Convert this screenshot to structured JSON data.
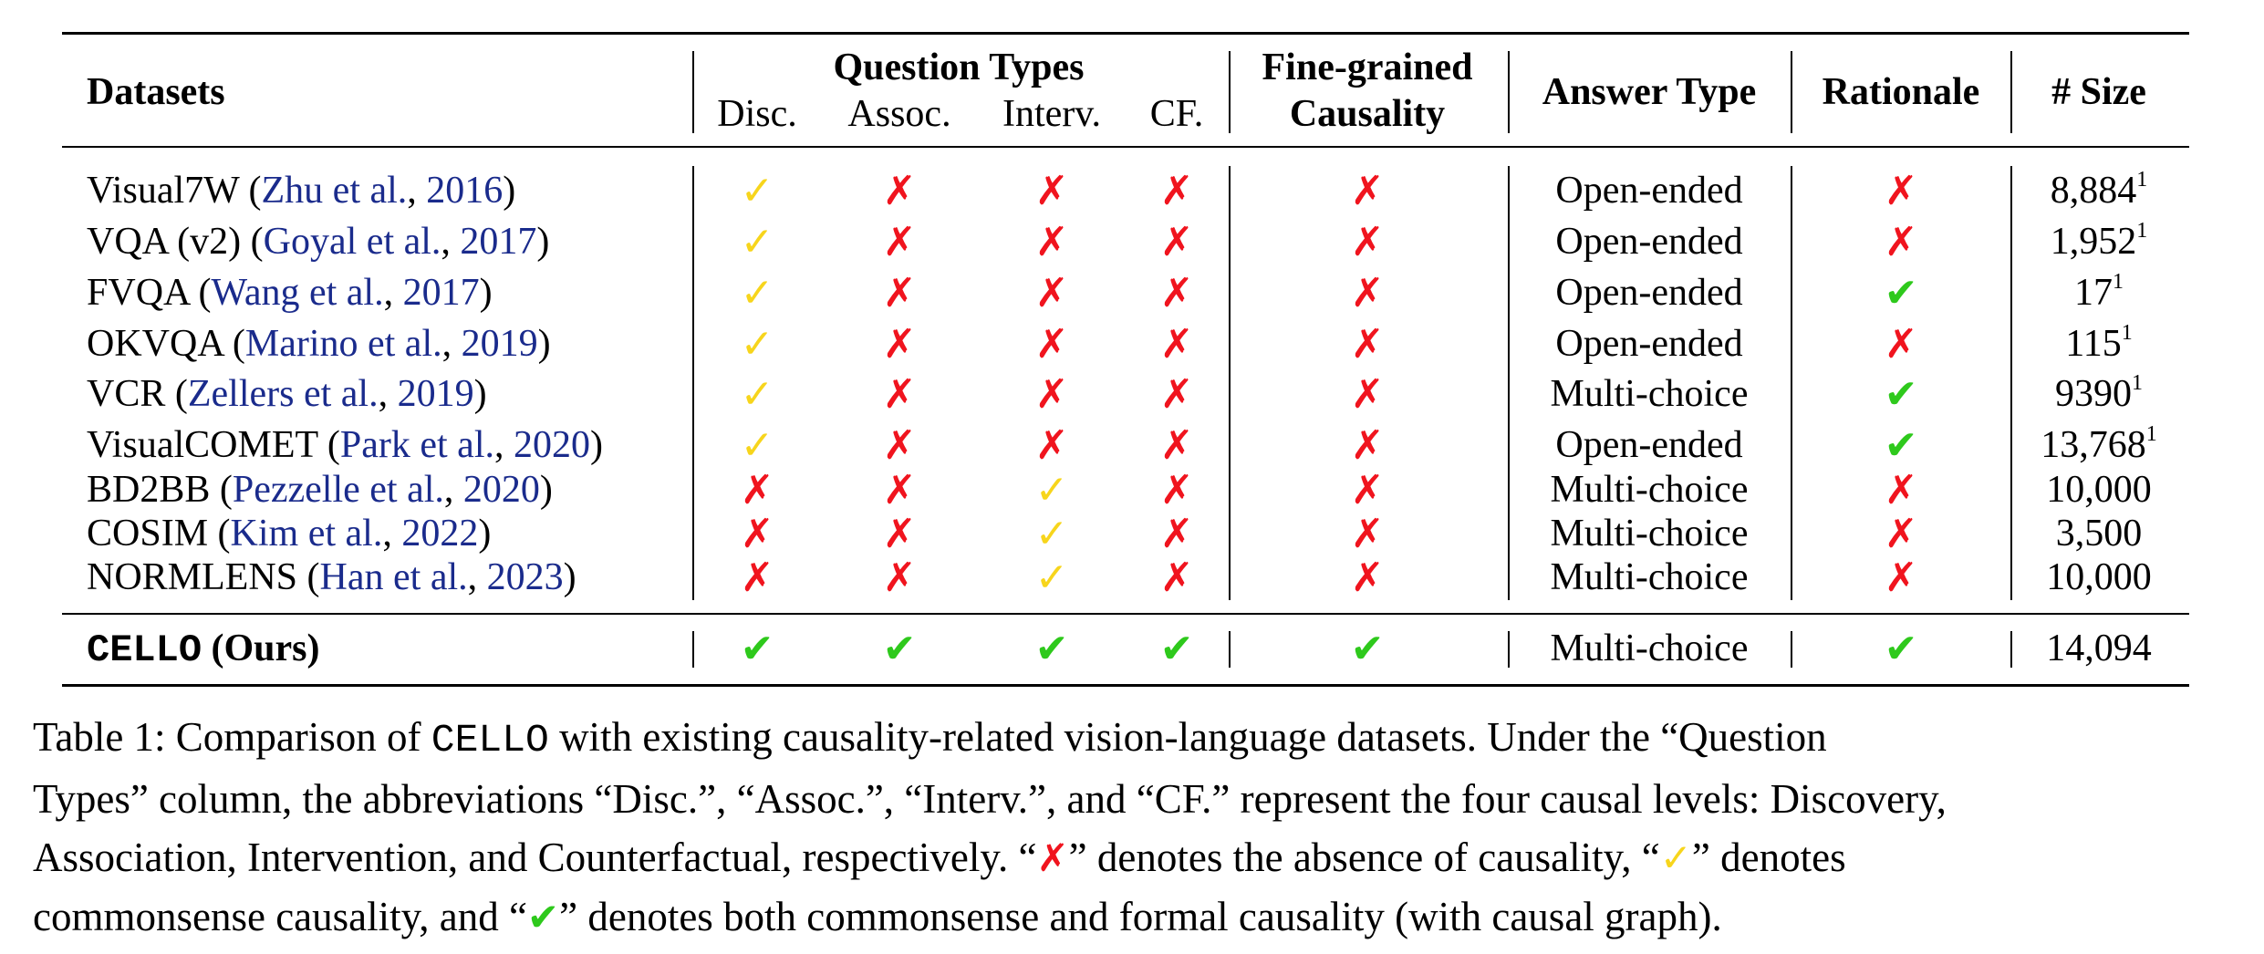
{
  "table": {
    "headers": {
      "datasets": "Datasets",
      "question_types": "Question Types",
      "qt_sub": [
        "Disc.",
        "Assoc.",
        "Interv.",
        "CF."
      ],
      "fine_grained_l1": "Fine-grained",
      "fine_grained_l2": "Causality",
      "answer_type": "Answer Type",
      "rationale": "Rationale",
      "size": "# Size"
    },
    "rows": [
      {
        "name": "Visual7W",
        "cite_author": "Zhu et al.",
        "cite_year": "2016",
        "marks": [
          "yes",
          "cross",
          "cross",
          "cross",
          "cross"
        ],
        "answer_type": "Open-ended",
        "rationale": "cross",
        "size": "8,884",
        "size_sup": "1"
      },
      {
        "name": "VQA (v2)",
        "cite_author": "Goyal et al.",
        "cite_year": "2017",
        "marks": [
          "yes",
          "cross",
          "cross",
          "cross",
          "cross"
        ],
        "answer_type": "Open-ended",
        "rationale": "cross",
        "size": "1,952",
        "size_sup": "1"
      },
      {
        "name": "FVQA",
        "cite_author": "Wang et al.",
        "cite_year": "2017",
        "marks": [
          "yes",
          "cross",
          "cross",
          "cross",
          "cross"
        ],
        "answer_type": "Open-ended",
        "rationale": "both",
        "size": "17",
        "size_sup": "1"
      },
      {
        "name": "OKVQA",
        "cite_author": "Marino et al.",
        "cite_year": "2019",
        "marks": [
          "yes",
          "cross",
          "cross",
          "cross",
          "cross"
        ],
        "answer_type": "Open-ended",
        "rationale": "cross",
        "size": "115",
        "size_sup": "1"
      },
      {
        "name": "VCR",
        "cite_author": "Zellers et al.",
        "cite_year": "2019",
        "marks": [
          "yes",
          "cross",
          "cross",
          "cross",
          "cross"
        ],
        "answer_type": "Multi-choice",
        "rationale": "both",
        "size": "9390",
        "size_sup": "1"
      },
      {
        "name": "VisualCOMET",
        "cite_author": "Park et al.",
        "cite_year": "2020",
        "marks": [
          "yes",
          "cross",
          "cross",
          "cross",
          "cross"
        ],
        "answer_type": "Open-ended",
        "rationale": "both",
        "size": "13,768",
        "size_sup": "1"
      },
      {
        "name": "BD2BB",
        "cite_author": "Pezzelle et al.",
        "cite_year": "2020",
        "marks": [
          "cross",
          "cross",
          "yes",
          "cross",
          "cross"
        ],
        "answer_type": "Multi-choice",
        "rationale": "cross",
        "size": "10,000",
        "size_sup": ""
      },
      {
        "name": "COSIM",
        "cite_author": "Kim et al.",
        "cite_year": "2022",
        "marks": [
          "cross",
          "cross",
          "yes",
          "cross",
          "cross"
        ],
        "answer_type": "Multi-choice",
        "rationale": "cross",
        "size": "3,500",
        "size_sup": ""
      },
      {
        "name": "NORMLENS",
        "cite_author": "Han et al.",
        "cite_year": "2023",
        "marks": [
          "cross",
          "cross",
          "yes",
          "cross",
          "cross"
        ],
        "answer_type": "Multi-choice",
        "rationale": "cross",
        "size": "10,000",
        "size_sup": ""
      }
    ],
    "ours": {
      "name": "CELLO",
      "suffix": "(Ours)",
      "marks": [
        "both",
        "both",
        "both",
        "both",
        "both"
      ],
      "answer_type": "Multi-choice",
      "rationale": "both",
      "size": "14,094"
    }
  },
  "symbols": {
    "cross": "✗",
    "yes": "✓",
    "both": "✔"
  },
  "colors": {
    "cross": "#f0141e",
    "yes": "#f7d51c",
    "both": "#2ec91c",
    "citation": "#1a2b8c"
  },
  "caption": {
    "l1_a": "Table 1: Comparison of ",
    "l1_mono": "CELLO",
    "l1_b": " with existing causality-related vision-language datasets. Under the “Question",
    "l2": "Types” column, the abbreviations “Disc.”, “Assoc.”, “Interv.”, and “CF.” represent the four causal levels: Discovery,",
    "l3_a": "Association, Intervention, and Counterfactual, respectively. “",
    "l3_b": "” denotes the absence of causality, “",
    "l3_c": "” denotes",
    "l4_a": "commonsense causality, and “",
    "l4_b": "” denotes both commonsense and formal causality (with causal graph)."
  }
}
